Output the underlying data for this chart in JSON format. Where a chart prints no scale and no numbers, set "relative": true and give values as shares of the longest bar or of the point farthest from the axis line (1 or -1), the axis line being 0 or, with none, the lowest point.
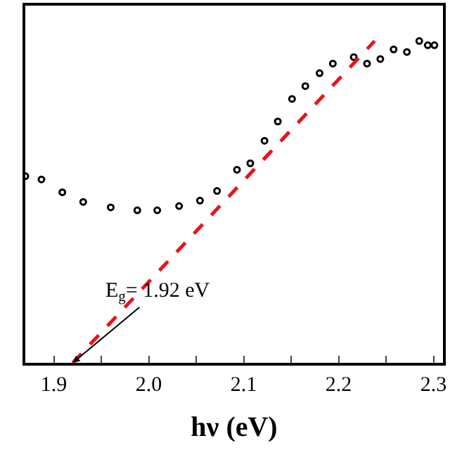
{
  "chart_data": {
    "type": "scatter",
    "xlabel": "hν (eV)",
    "relative": true,
    "marker": "circle",
    "xlim": [
      1.87,
      2.31
    ],
    "xticks": [
      {
        "value": 1.9,
        "label": "1.9"
      },
      {
        "value": 1.95,
        "label": null
      },
      {
        "value": 2.0,
        "label": "2.0"
      },
      {
        "value": 2.05,
        "label": null
      },
      {
        "value": 2.1,
        "label": "2.1"
      },
      {
        "value": 2.15,
        "label": null
      },
      {
        "value": 2.2,
        "label": "2.2"
      },
      {
        "value": 2.25,
        "label": null
      },
      {
        "value": 2.3,
        "label": "2.3"
      }
    ],
    "series": [
      {
        "color": "#000000",
        "x": [
          1.87,
          1.887,
          1.909,
          1.931,
          1.96,
          1.988,
          2.009,
          2.032,
          2.054,
          2.072,
          2.093,
          2.107,
          2.122,
          2.136,
          2.151,
          2.165,
          2.18,
          2.194,
          2.216,
          2.23,
          2.244,
          2.258,
          2.272,
          2.285,
          2.294,
          2.301
        ],
        "values": [
          0.58,
          0.57,
          0.53,
          0.5,
          0.483,
          0.474,
          0.474,
          0.487,
          0.504,
          0.534,
          0.6,
          0.62,
          0.69,
          0.75,
          0.82,
          0.86,
          0.9,
          0.93,
          0.95,
          0.93,
          0.944,
          0.974,
          0.966,
          1.0,
          0.987,
          0.987
        ]
      },
      {
        "type": "line",
        "color": "#e8141c",
        "line_style": "dashed",
        "marker": "none",
        "x": [
          1.92,
          2.238
        ],
        "values": [
          0,
          1.0
        ]
      }
    ],
    "annotations": [
      {
        "text": "E$_{g}$= 1.92 eV",
        "x": 1.92,
        "y": 0
      }
    ]
  }
}
